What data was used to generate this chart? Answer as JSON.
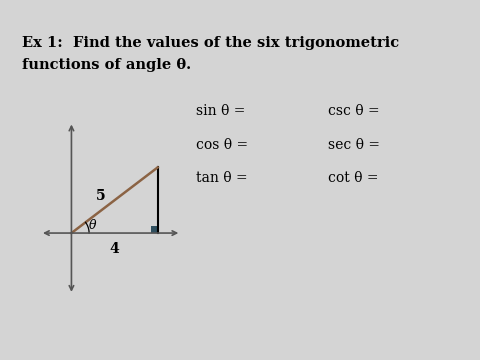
{
  "background_color": "#d4d4d4",
  "inner_bg_color": "#ffffff",
  "header_color": "#3a4a6b",
  "title_line1": "Ex 1:  Find the values of the six trigonometric",
  "title_line2": "functions of angle θ.",
  "title_fontsize": 10.5,
  "trig_functions_left": [
    "sin θ =",
    "cos θ =",
    "tan θ ="
  ],
  "trig_functions_right": [
    "csc θ =",
    "sec θ =",
    "cot θ ="
  ],
  "trig_fontsize": 10,
  "side_label_5": "5",
  "side_label_4": "4",
  "angle_label": "θ",
  "triangle_line_color": "#8B6344",
  "right_angle_color": "#2F4F5F",
  "text_color": "#000000",
  "axis_color": "#555555"
}
